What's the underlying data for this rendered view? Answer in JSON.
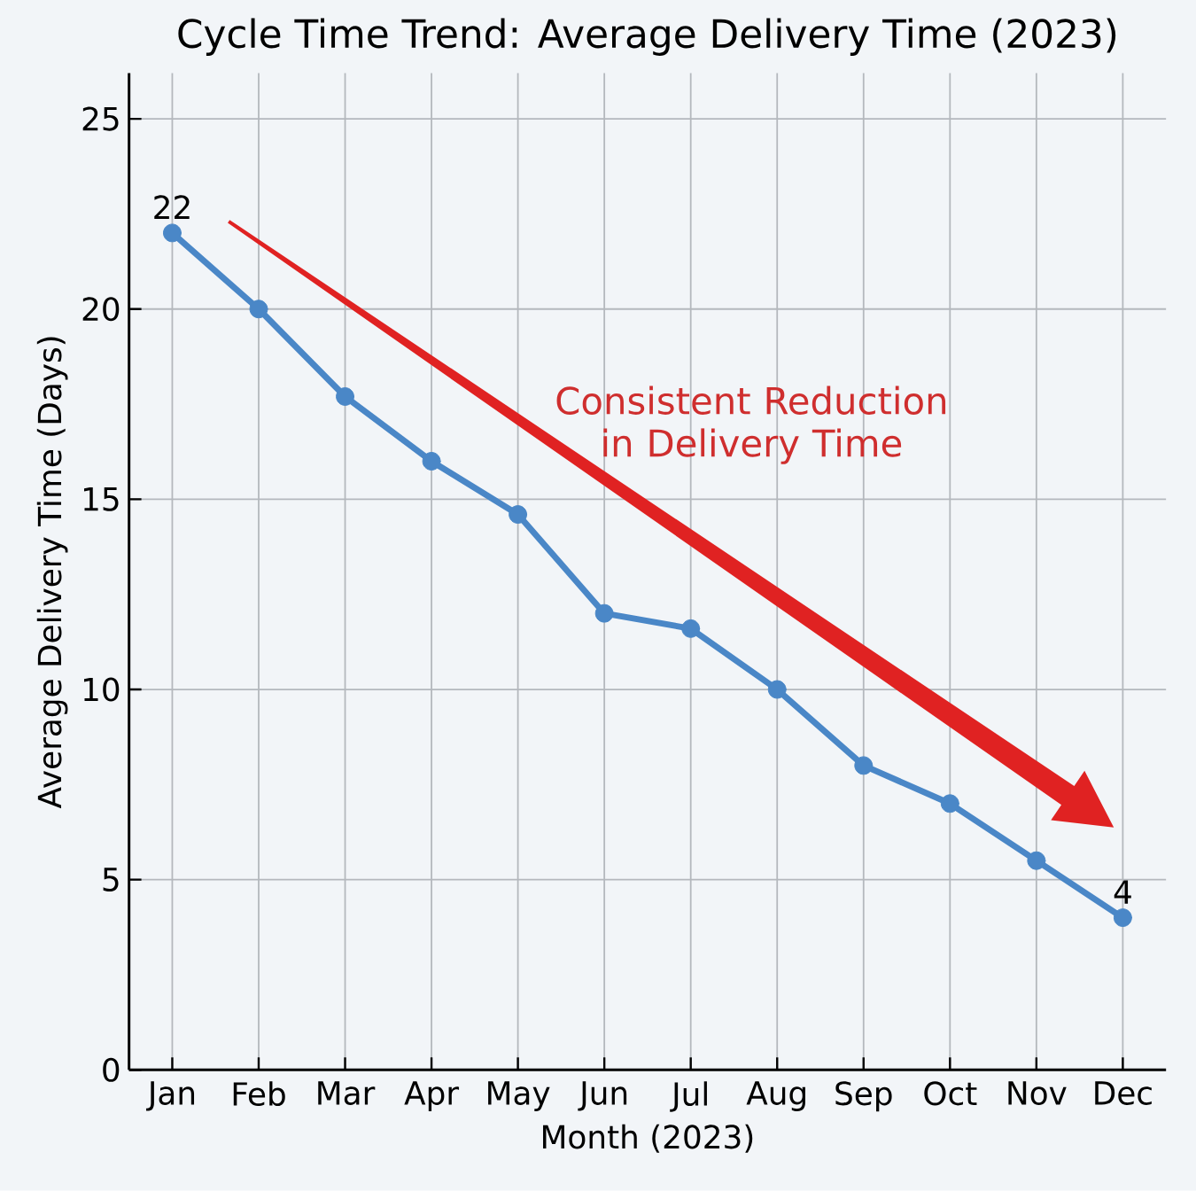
{
  "chart_data": {
    "type": "line",
    "title": "Cycle Time Trend: Average Delivery Time (2023)",
    "xlabel": "Month (2023)",
    "ylabel": "Average Delivery Time (Days)",
    "categories": [
      "Jan",
      "Feb",
      "Mar",
      "Apr",
      "May",
      "Jun",
      "Jul",
      "Aug",
      "Sep",
      "Oct",
      "Nov",
      "Dec"
    ],
    "values": [
      22,
      20,
      17.7,
      16,
      14.6,
      12,
      11.6,
      10,
      8,
      7,
      5.5,
      4
    ],
    "value_labels": [
      "22",
      null,
      null,
      null,
      null,
      null,
      null,
      null,
      null,
      null,
      null,
      "4"
    ],
    "color": "#4a87c7",
    "marker": "circle",
    "line_style": "solid",
    "grid": true,
    "ylim": [
      0,
      26.2
    ],
    "yticks": [
      0,
      5,
      10,
      15,
      20,
      25
    ],
    "annotations": [
      "Consistent Reduction in Delivery Time"
    ]
  }
}
